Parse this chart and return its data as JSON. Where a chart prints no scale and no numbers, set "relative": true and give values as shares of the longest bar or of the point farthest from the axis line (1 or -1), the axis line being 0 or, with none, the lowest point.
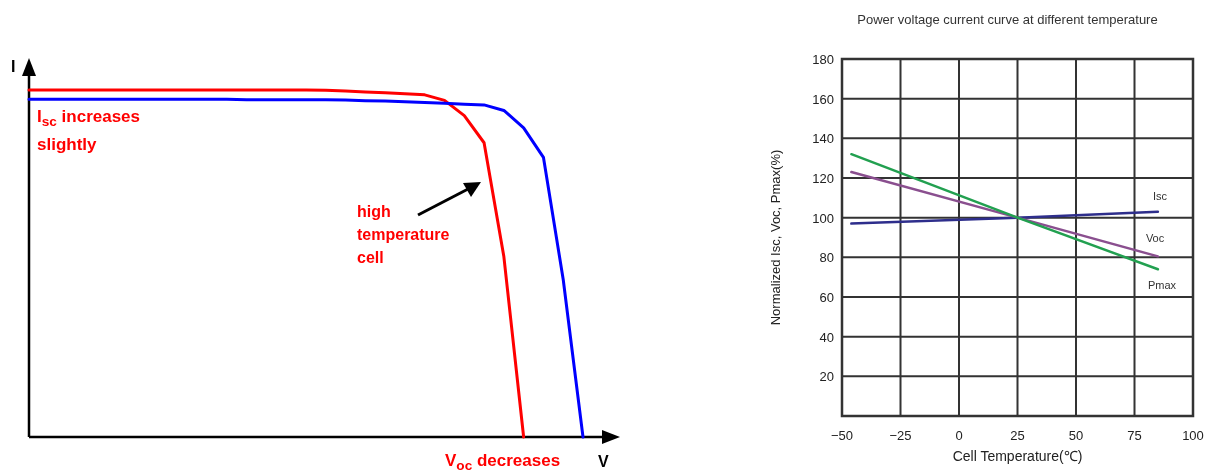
{
  "chart_data": [
    {
      "type": "line",
      "relative": true,
      "xlabel": "V",
      "ylabel": "I",
      "line_style": "solid",
      "marker": "none",
      "annotations": [
        "I$_{sc}$ increases slightly",
        "high temperature cell",
        "V$_{oc}$ decreases"
      ],
      "categories": [
        null,
        null,
        null,
        null,
        null,
        null,
        null,
        null,
        null,
        null,
        null,
        null,
        null,
        null,
        null,
        null,
        null,
        null,
        null,
        null,
        null,
        null,
        null,
        null,
        null,
        null,
        null,
        null,
        null
      ],
      "series": [
        {
          "color": "#ff0000",
          "values": [
            1,
            1,
            1,
            1,
            1,
            1,
            1,
            1,
            1,
            1,
            1,
            1,
            1,
            1,
            1,
            0.999,
            0.997,
            0.994,
            0.992,
            0.989,
            0.986,
            0.97,
            0.926,
            0.848,
            0.52,
            0,
            null,
            null,
            null
          ]
        },
        {
          "color": "#0000ff",
          "values": [
            0.973,
            0.973,
            0.973,
            0.973,
            0.973,
            0.973,
            0.973,
            0.973,
            0.973,
            0.973,
            0.973,
            0.972,
            0.972,
            0.972,
            0.972,
            0.972,
            0.971,
            0.969,
            0.968,
            0.966,
            0.964,
            0.962,
            0.959,
            0.957,
            0.941,
            0.891,
            0.806,
            0.454,
            0
          ]
        }
      ]
    },
    {
      "type": "line",
      "title": "Power voltage current curve at different temperature",
      "xlabel": "Cell Temperature(℃)",
      "ylabel": "Normalized Isc, Voc, Pmax(%)",
      "xlim": [
        -50,
        100
      ],
      "ylim": [
        0,
        180
      ],
      "xticks": [
        {
          "value": -50,
          "label": "−50"
        },
        {
          "value": -25,
          "label": "−25"
        },
        0,
        25,
        50,
        75,
        100
      ],
      "yticks": [
        20,
        40,
        60,
        80,
        100,
        120,
        140,
        160,
        180
      ],
      "grid": true,
      "line_style": "solid",
      "marker": "none",
      "series": [
        {
          "name": "Isc",
          "color": "#2e2e8c",
          "x": [
            -46,
            25,
            85
          ],
          "values": [
            97,
            100,
            103
          ]
        },
        {
          "name": "Voc",
          "color": "#8a4f8f",
          "x": [
            -46,
            25,
            85
          ],
          "values": [
            123,
            100,
            80.5
          ]
        },
        {
          "name": "Pmax",
          "color": "#22a050",
          "x": [
            -46,
            25,
            85
          ],
          "values": [
            132,
            100,
            74
          ]
        }
      ]
    }
  ]
}
